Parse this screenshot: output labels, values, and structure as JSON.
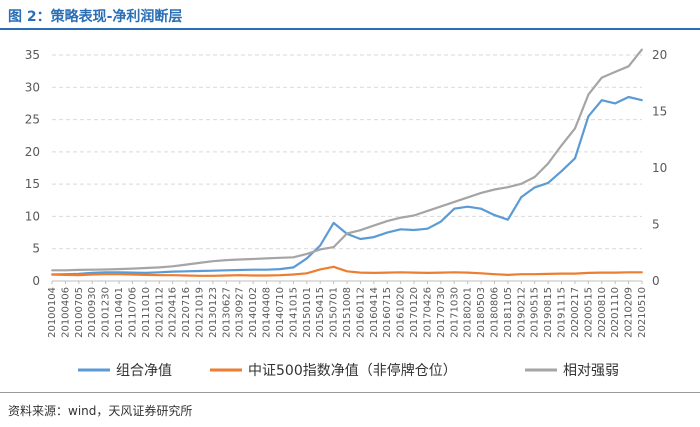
{
  "figure": {
    "title": "图 2：策略表现-净利润断层",
    "source": "资料来源：wind，天风证券研究所"
  },
  "chart_data": {
    "type": "line",
    "x": [
      "20100104",
      "20100406",
      "20100705",
      "20100930",
      "20101230",
      "20110401",
      "20110706",
      "20111010",
      "20120112",
      "20120416",
      "20120716",
      "20121019",
      "20130123",
      "20130627",
      "20130927",
      "20140102",
      "20140408",
      "20140710",
      "20141015",
      "20150101",
      "20150415",
      "20150701",
      "20151008",
      "20160112",
      "20160414",
      "20160715",
      "20161020",
      "20170120",
      "20170426",
      "20170730",
      "20171030",
      "20180201",
      "20180503",
      "20180806",
      "20181105",
      "20190212",
      "20190515",
      "20190815",
      "20191115",
      "20200217",
      "20200515",
      "20200810",
      "20201110",
      "20210209",
      "20210510"
    ],
    "x_tick_labels": [
      "20100104",
      "20100406",
      "20100705",
      "20100930",
      "20101230",
      "20110401",
      "20110706",
      "20111010",
      "20120112",
      "20120416",
      "20120716",
      "20121019",
      "20130123",
      "20130627",
      "20130927",
      "20140102",
      "20140408",
      "20140710",
      "20141015",
      "20150101",
      "20150415",
      "20150701",
      "20151008",
      "20160112",
      "20160414",
      "20160715",
      "20161020",
      "20170120",
      "20170426",
      "20170730",
      "20171030",
      "20180201",
      "20180503",
      "20180806",
      "20181105",
      "20190212",
      "20190515",
      "20190815",
      "20191115",
      "20200217",
      "20200515",
      "20200810",
      "20201110",
      "20210209",
      "20210510"
    ],
    "y_left": {
      "lim": [
        0,
        35
      ],
      "ticks": [
        0,
        5,
        10,
        15,
        20,
        25,
        30,
        35
      ]
    },
    "y_right": {
      "lim": [
        0,
        20
      ],
      "ticks": [
        0,
        5,
        10,
        15,
        20
      ]
    },
    "grid": "horizontal dashed",
    "legend_position": "bottom",
    "series": [
      {
        "name": "组合净值",
        "axis": "left",
        "color": "#5b9bd5",
        "values": [
          1.0,
          1.05,
          1.1,
          1.25,
          1.35,
          1.35,
          1.3,
          1.25,
          1.35,
          1.45,
          1.5,
          1.55,
          1.6,
          1.65,
          1.7,
          1.75,
          1.75,
          1.85,
          2.1,
          3.5,
          5.5,
          9.0,
          7.3,
          6.5,
          6.8,
          7.5,
          8.0,
          7.9,
          8.1,
          9.2,
          11.2,
          11.5,
          11.2,
          10.2,
          9.5,
          13.0,
          14.5,
          15.2,
          17.0,
          19.0,
          25.5,
          28.0,
          27.5,
          28.5,
          28.0
        ]
      },
      {
        "name": "中证500指数净值（非停牌仓位）",
        "axis": "left",
        "color": "#ed7d31",
        "values": [
          1.0,
          0.95,
          0.9,
          1.0,
          1.05,
          1.05,
          1.0,
          0.95,
          0.9,
          0.9,
          0.85,
          0.8,
          0.8,
          0.85,
          0.9,
          0.85,
          0.85,
          0.9,
          1.0,
          1.2,
          1.8,
          2.2,
          1.5,
          1.3,
          1.25,
          1.3,
          1.35,
          1.3,
          1.25,
          1.3,
          1.35,
          1.3,
          1.2,
          1.05,
          0.95,
          1.05,
          1.05,
          1.1,
          1.15,
          1.15,
          1.25,
          1.3,
          1.3,
          1.35,
          1.35
        ]
      },
      {
        "name": "相对强弱",
        "axis": "right",
        "color": "#a5a5a5",
        "values": [
          0.95,
          0.95,
          0.98,
          1.0,
          1.02,
          1.05,
          1.1,
          1.15,
          1.2,
          1.3,
          1.45,
          1.6,
          1.75,
          1.85,
          1.9,
          1.95,
          2.0,
          2.05,
          2.1,
          2.4,
          2.8,
          3.0,
          4.2,
          4.5,
          4.9,
          5.3,
          5.6,
          5.8,
          6.2,
          6.6,
          7.0,
          7.4,
          7.8,
          8.1,
          8.3,
          8.6,
          9.2,
          10.4,
          12.0,
          13.5,
          16.5,
          18.0,
          18.5,
          19.0,
          20.5
        ]
      }
    ]
  }
}
